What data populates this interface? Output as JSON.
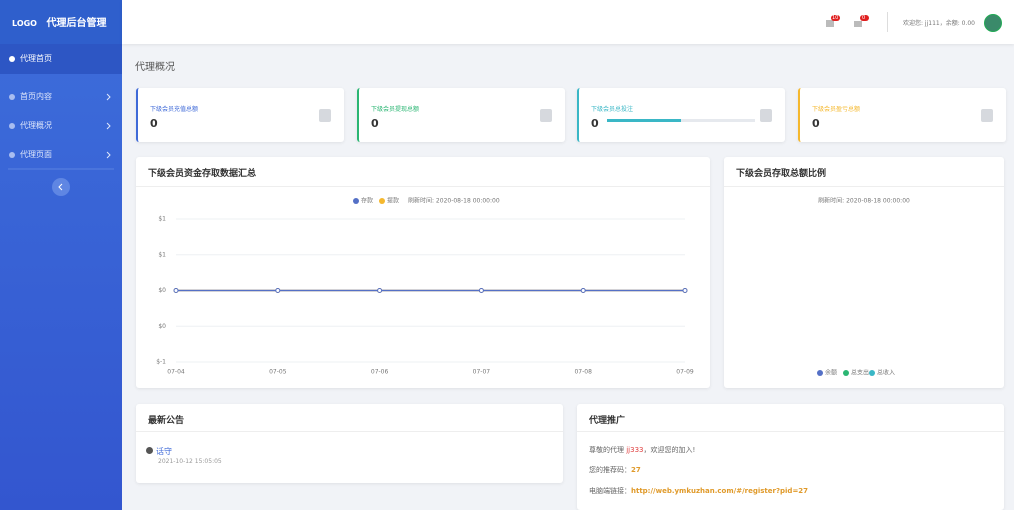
{
  "sidebar": {
    "logo": "LOGO",
    "title": "代理后台管理",
    "menu": [
      "代理首页",
      "首页内容",
      "代理概况",
      "代理页面"
    ]
  },
  "header": {
    "badges": [
      "10",
      "0"
    ],
    "welcome": "欢迎您: jj111，余额: 0.00"
  },
  "page_title": "代理概况",
  "stats": [
    {
      "label": "下级会员充值总额",
      "value": 0,
      "color": "#3f6ad8"
    },
    {
      "label": "下级会员提现总额",
      "value": 0,
      "color": "#2bb673"
    },
    {
      "label": "下级会员总投注",
      "value": 0,
      "color": "#3ab7c6"
    },
    {
      "label": "下级会员盈亏总额",
      "value": 0,
      "color": "#f5b82e"
    }
  ],
  "deposit_chart": {
    "type": "line",
    "title": "下级会员资金存取数据汇总",
    "refresh": "刷新时间: 2020-08-18 00:00:00",
    "categories": [
      "07-04",
      "07-05",
      "07-06",
      "07-07",
      "07-08",
      "07-09"
    ],
    "series": [
      {
        "name": "存款",
        "color": "#5470c6",
        "values": [
          0,
          0,
          0,
          0,
          0,
          0
        ]
      },
      {
        "name": "提款",
        "color": "#f5b82e",
        "values": [
          0,
          0,
          0,
          0,
          0,
          0
        ]
      }
    ],
    "ylim": [
      -1,
      1
    ],
    "yticks": [
      {
        "value": 1,
        "label": "$1"
      },
      {
        "value": 0.5,
        "label": "$1"
      },
      {
        "value": 0,
        "label": "$0"
      },
      {
        "value": -0.5,
        "label": "$0"
      },
      {
        "value": -1,
        "label": "$-1"
      }
    ],
    "grid": true
  },
  "ratio_chart": {
    "type": "pie",
    "title": "下级会员存取总额比例",
    "refresh": "刷新时间: 2020-08-18 00:00:00",
    "legend": [
      {
        "name": "余额",
        "color": "#5470c6"
      },
      {
        "name": "总支出",
        "color": "#2bb673"
      },
      {
        "name": "总收入",
        "color": "#3ab7c6"
      }
    ]
  },
  "notice": {
    "title": "最新公告",
    "items": [
      {
        "title": "话守",
        "date": "2021-10-12 15:05:05"
      }
    ]
  },
  "promo": {
    "title": "代理推广",
    "greeting": [
      "尊敬的代理",
      "jj333",
      "，欢迎您的加入!"
    ],
    "code_label": "您的推荐码：",
    "code": "27",
    "link_label": "电脑端链接：",
    "link": "http://web.ymkuzhan.com/#/register?pid=27"
  }
}
